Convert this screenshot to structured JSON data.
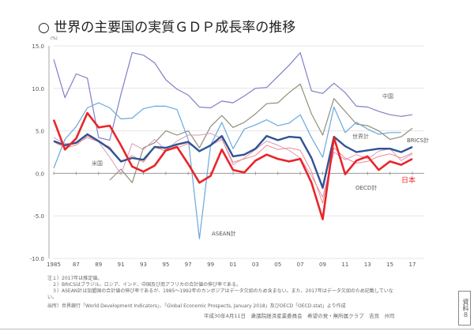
{
  "title": "○ 世界の主要国の実質ＧＤＰ成長率の推移",
  "notes": [
    "注１）2017年は推定値。",
    "２）BRICSはブラジル、ロシア、インド、中国及び南アフリカの合計値の伸び率である。",
    "３）ASEAN計は加盟国の合計値の伸び率であるが、1985～1992年のカンボジアはデータ欠如のため含まない。また、2017年はデータ欠如のため記載していな",
    "い。"
  ],
  "source": "出所）世界銀行「World Development Indicators」、「Global Economic Prospects, January 2018」及びOECD「OECD.stat」より作成",
  "footer": "平成30年4月11日　衆議院経済産業委員会　希望の党・無所属クラブ　吉良　州司",
  "stamp": "資料８",
  "chart_data": {
    "type": "line",
    "title": "",
    "ylabel": "(%)",
    "ylim": [
      -10,
      15
    ],
    "yticks": [
      "15.0",
      "10.0",
      "5.0",
      "0.0",
      "-5.0",
      "-10.0"
    ],
    "ytick_values": [
      15,
      10,
      5,
      0,
      -5,
      -10
    ],
    "x": [
      1985,
      1986,
      1987,
      1988,
      1989,
      1990,
      1991,
      1992,
      1993,
      1994,
      1995,
      1996,
      1997,
      1998,
      1999,
      2000,
      2001,
      2002,
      2003,
      2004,
      2005,
      2006,
      2007,
      2008,
      2009,
      2010,
      2011,
      2012,
      2013,
      2014,
      2015,
      2016,
      2017
    ],
    "xtick_labels": [
      "1985",
      "87",
      "89",
      "91",
      "93",
      "95",
      "97",
      "99",
      "01",
      "03",
      "05",
      "07",
      "09",
      "11",
      "13",
      "15",
      "17"
    ],
    "grid": true,
    "series": [
      {
        "name": "中国",
        "color": "#7f80c6",
        "width": 1.2,
        "values": [
          13.4,
          8.9,
          11.7,
          11.2,
          4.2,
          3.9,
          9.3,
          14.2,
          13.9,
          13.0,
          11.0,
          9.9,
          9.2,
          7.8,
          7.7,
          8.5,
          8.3,
          9.1,
          10.0,
          10.1,
          11.4,
          12.7,
          14.2,
          9.7,
          9.4,
          10.6,
          9.5,
          7.9,
          7.8,
          7.3,
          6.9,
          6.7,
          6.9
        ]
      },
      {
        "name": "BRICS計",
        "color": "#8f8f7a",
        "width": 1.2,
        "values": [
          null,
          null,
          null,
          null,
          null,
          -0.8,
          0.5,
          -1.1,
          3.0,
          3.6,
          5.0,
          4.5,
          5.0,
          3.0,
          5.5,
          6.8,
          5.4,
          6.0,
          7.0,
          8.2,
          8.3,
          9.5,
          10.5,
          7.0,
          4.5,
          8.8,
          7.3,
          5.8,
          5.6,
          5.0,
          4.0,
          4.3,
          5.3
        ]
      },
      {
        "name": "ASEAN計",
        "color": "#6aa8dc",
        "width": 1.2,
        "values": [
          0.6,
          4.0,
          5.5,
          7.7,
          8.3,
          7.7,
          6.4,
          6.5,
          7.6,
          7.9,
          7.9,
          7.5,
          4.0,
          -7.7,
          3.3,
          6.0,
          2.9,
          5.2,
          5.7,
          6.3,
          5.6,
          5.9,
          6.9,
          4.2,
          1.9,
          7.8,
          4.8,
          6.0,
          5.2,
          4.6,
          4.8,
          4.8,
          null
        ]
      },
      {
        "name": "米国",
        "color": "#d79ac0",
        "width": 1,
        "values": [
          4.2,
          3.5,
          3.5,
          4.2,
          3.7,
          1.9,
          -0.1,
          3.5,
          2.8,
          4.0,
          2.7,
          3.8,
          4.5,
          4.5,
          4.7,
          4.1,
          1.0,
          1.8,
          2.8,
          3.8,
          3.3,
          2.7,
          1.8,
          -0.3,
          -2.8,
          2.5,
          1.6,
          2.2,
          1.7,
          2.6,
          2.9,
          1.5,
          2.3
        ]
      },
      {
        "name": "OECD計",
        "color": "#f08a8a",
        "width": 1,
        "values": [
          3.7,
          3.0,
          3.3,
          4.4,
          3.7,
          3.1,
          1.3,
          2.1,
          1.3,
          3.1,
          2.6,
          3.0,
          3.5,
          2.7,
          3.3,
          4.0,
          1.3,
          1.7,
          2.1,
          3.3,
          2.8,
          3.0,
          2.7,
          0.2,
          -3.5,
          3.0,
          1.8,
          1.2,
          1.4,
          2.0,
          2.3,
          1.8,
          2.4
        ]
      },
      {
        "name": "世界計",
        "color": "#2f5394",
        "width": 2.4,
        "values": [
          3.8,
          3.3,
          3.6,
          4.6,
          3.8,
          2.9,
          1.4,
          1.8,
          1.6,
          3.1,
          3.0,
          3.4,
          3.7,
          2.6,
          3.3,
          4.4,
          2.0,
          2.2,
          2.9,
          4.4,
          3.9,
          4.3,
          4.2,
          1.8,
          -1.7,
          4.3,
          3.2,
          2.5,
          2.7,
          2.9,
          2.9,
          2.5,
          3.1
        ]
      },
      {
        "name": "日本",
        "color": "#e8262a",
        "width": 2.6,
        "values": [
          6.3,
          2.8,
          4.1,
          7.1,
          5.4,
          5.6,
          3.3,
          0.8,
          0.2,
          0.9,
          2.7,
          3.1,
          1.1,
          -1.1,
          -0.3,
          2.8,
          0.4,
          0.1,
          1.5,
          2.2,
          1.7,
          1.4,
          1.7,
          -1.1,
          -5.4,
          4.2,
          -0.1,
          1.5,
          2.0,
          0.4,
          1.4,
          1.0,
          1.7
        ]
      }
    ],
    "annotations": [
      {
        "text": "中国",
        "series": "中国",
        "color": "#666"
      },
      {
        "text": "BRICS計",
        "series": "BRICS計",
        "color": "#555"
      },
      {
        "text": "世界計",
        "series": "世界計",
        "color": "#666"
      },
      {
        "text": "米国",
        "series": "米国",
        "color": "#666"
      },
      {
        "text": "ASEAN計",
        "series": "ASEAN計",
        "color": "#555"
      },
      {
        "text": "OECD計",
        "series": "OECD計",
        "color": "#555"
      },
      {
        "text": "日本",
        "series": "日本",
        "color": "#e8262a"
      }
    ]
  }
}
